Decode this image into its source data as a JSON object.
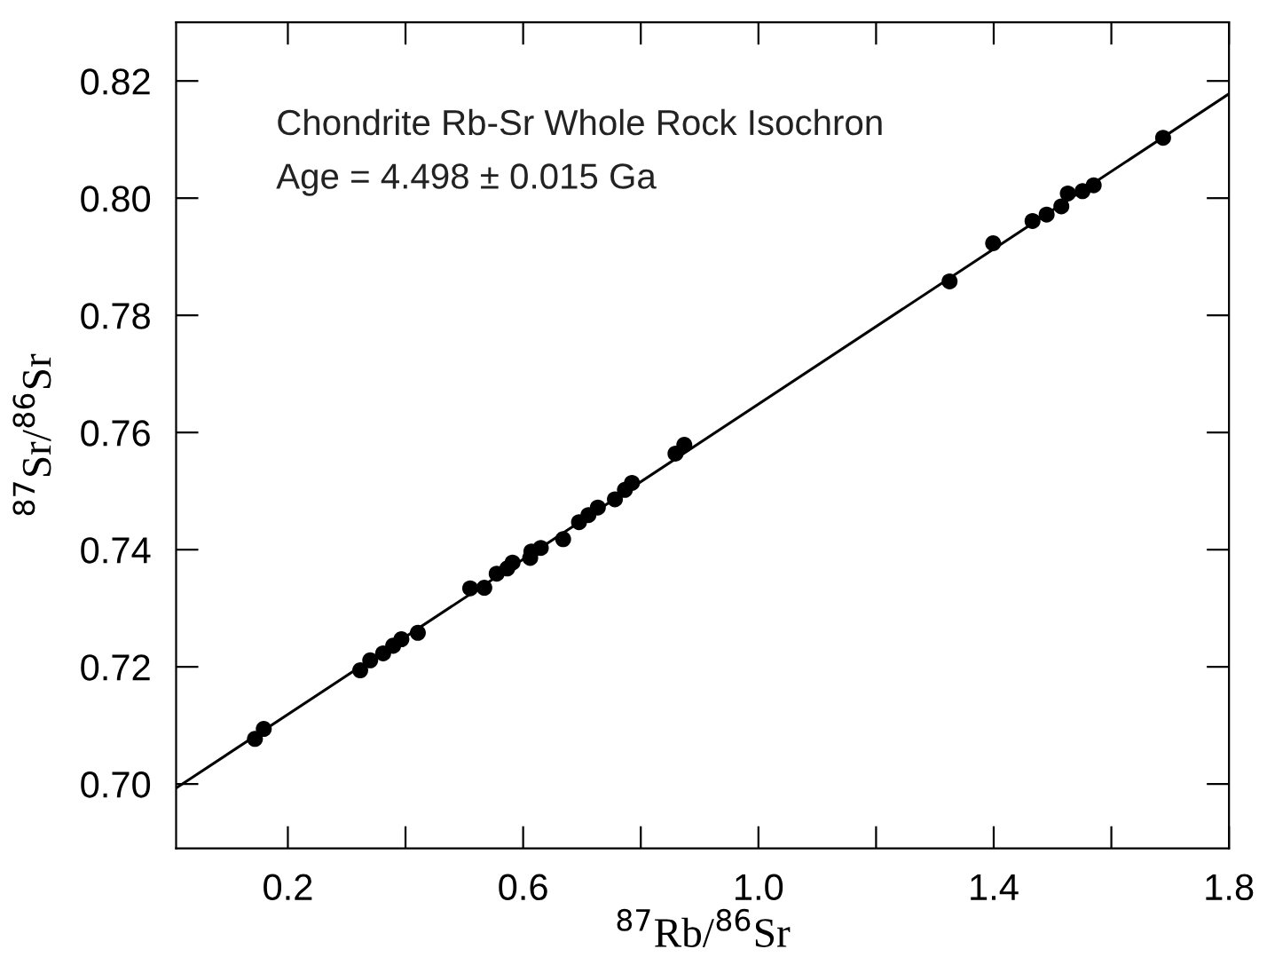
{
  "chart_data": {
    "type": "scatter",
    "xlabel": "$^{87}$Rb/$^{86}$Sr",
    "ylabel": "$^{87}$Sr/$^{86}$Sr",
    "annotations": [
      "Chondrite Rb-Sr Whole Rock Isochron",
      "Age = 4.498 ± 0.015 Ga"
    ],
    "xlim": [
      0.01,
      1.8
    ],
    "ylim": [
      0.689,
      0.83
    ],
    "xticks": [
      {
        "value": 0.2,
        "label": "0.2"
      },
      {
        "value": 0.4,
        "label": null
      },
      {
        "value": 0.6,
        "label": "0.6"
      },
      {
        "value": 0.8,
        "label": null
      },
      {
        "value": 1.0,
        "label": "1.0"
      },
      {
        "value": 1.2,
        "label": null
      },
      {
        "value": 1.4,
        "label": "1.4"
      },
      {
        "value": 1.6,
        "label": null
      },
      {
        "value": 1.8,
        "label": "1.8"
      }
    ],
    "yticks": [
      {
        "value": 0.7,
        "label": "0.70"
      },
      {
        "value": 0.72,
        "label": "0.72"
      },
      {
        "value": 0.74,
        "label": "0.74"
      },
      {
        "value": 0.76,
        "label": "0.76"
      },
      {
        "value": 0.78,
        "label": "0.78"
      },
      {
        "value": 0.8,
        "label": "0.80"
      },
      {
        "value": 0.82,
        "label": "0.82"
      }
    ],
    "grid": false,
    "legend": false,
    "marker": "circle",
    "series": [
      {
        "color": "#000000",
        "x": [
          0.144,
          0.159,
          0.323,
          0.34,
          0.362,
          0.379,
          0.393,
          0.421,
          0.51,
          0.534,
          0.555,
          0.573,
          0.582,
          0.612,
          0.614,
          0.63,
          0.668,
          0.695,
          0.711,
          0.727,
          0.756,
          0.773,
          0.785,
          0.859,
          0.874,
          1.325,
          1.399,
          1.466,
          1.49,
          1.515,
          1.526,
          1.551,
          1.57,
          1.688
        ],
        "values": [
          0.7077,
          0.7094,
          0.7194,
          0.7211,
          0.7223,
          0.7236,
          0.7247,
          0.7258,
          0.7334,
          0.7335,
          0.7359,
          0.7368,
          0.7378,
          0.7386,
          0.7397,
          0.7403,
          0.7418,
          0.7447,
          0.7459,
          0.7472,
          0.7486,
          0.7502,
          0.7514,
          0.7564,
          0.7579,
          0.7858,
          0.7923,
          0.7961,
          0.7972,
          0.7986,
          0.8008,
          0.8012,
          0.8022,
          0.8103
        ]
      },
      {
        "type": "line",
        "color": "#000000",
        "marker": "none",
        "line_style": "solid",
        "x": [
          0.01,
          1.8
        ],
        "values": [
          0.6993,
          0.8178
        ]
      }
    ]
  }
}
